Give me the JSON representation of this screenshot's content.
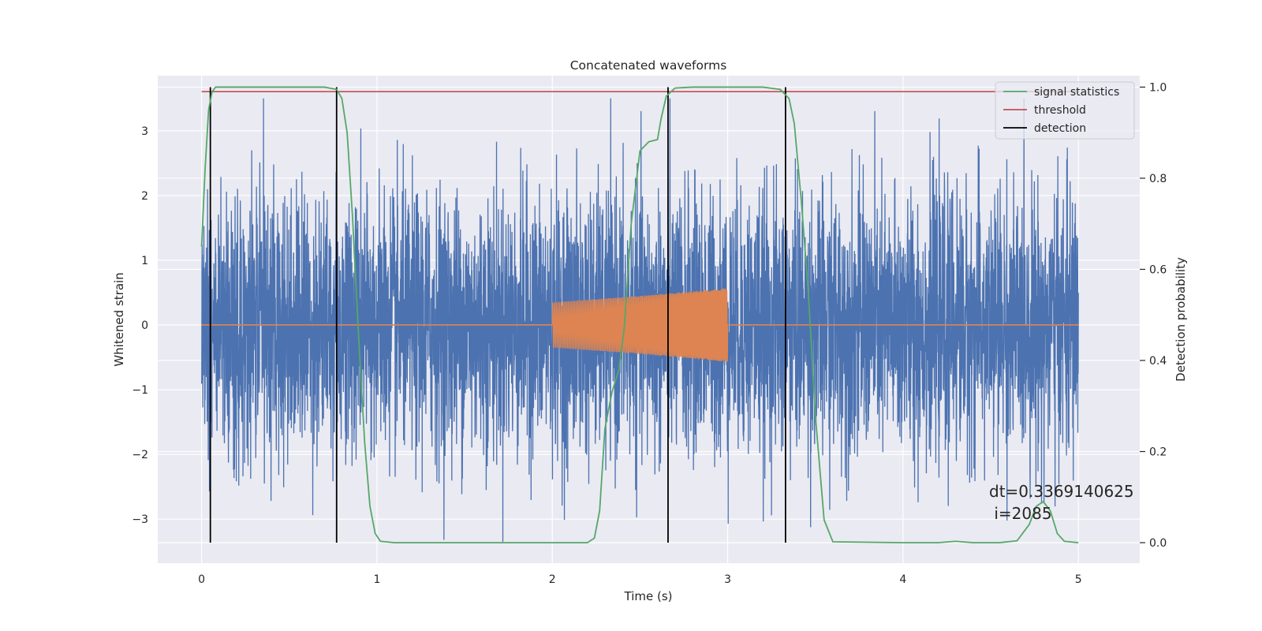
{
  "chart_data": {
    "type": "line",
    "title": "Concatenated waveforms",
    "xlabel": "Time (s)",
    "ylabel_left": "Whitened strain",
    "ylabel_right": "Detection probability",
    "xlim": [
      -0.25,
      5.35
    ],
    "ylim_left": [
      -3.68,
      3.85
    ],
    "ylim_right": [
      -0.045,
      1.025
    ],
    "x_ticks": [
      0,
      1,
      2,
      3,
      4,
      5
    ],
    "x_tick_labels": [
      "0",
      "1",
      "2",
      "3",
      "4",
      "5"
    ],
    "y_left_ticks": [
      -3,
      -2,
      -1,
      0,
      1,
      2,
      3
    ],
    "y_left_tick_labels": [
      "−3",
      "−2",
      "−1",
      "0",
      "1",
      "2",
      "3"
    ],
    "y_right_ticks": [
      0.0,
      0.2,
      0.4,
      0.6,
      0.8,
      1.0
    ],
    "y_right_tick_labels": [
      "0.0",
      "0.2",
      "0.4",
      "0.6",
      "0.8",
      "1.0"
    ],
    "grid": true,
    "legend_position": "top-right",
    "legend": [
      {
        "label": "signal statistics",
        "color": "#55a868"
      },
      {
        "label": "threshold",
        "color": "#c44e52"
      },
      {
        "label": "detection",
        "color": "#000000"
      }
    ],
    "annotation_lines": [
      "dt=0.3369140625",
      " i=2085"
    ],
    "series": [
      {
        "name": "",
        "role": "whitened strain noise",
        "axis": "left",
        "color": "#4c72b0",
        "x_range": [
          0,
          5
        ],
        "y_range_approx": [
          -3.35,
          3.5
        ]
      },
      {
        "name": "",
        "role": "injected waveform",
        "axis": "left",
        "color": "#dd8452",
        "x": [
          0,
          2.0,
          2.0,
          2.5,
          3.0,
          3.0,
          5.0
        ],
        "amplitude": [
          0,
          0,
          0.35,
          0.45,
          0.57,
          0,
          0
        ]
      },
      {
        "name": "signal statistics",
        "axis": "right",
        "color": "#55a868",
        "x": [
          0.0,
          0.02,
          0.04,
          0.06,
          0.08,
          0.12,
          0.2,
          0.4,
          0.6,
          0.7,
          0.77,
          0.8,
          0.83,
          0.86,
          0.9,
          0.93,
          0.96,
          0.99,
          1.02,
          1.1,
          1.5,
          2.0,
          2.2,
          2.24,
          2.27,
          2.3,
          2.34,
          2.38,
          2.41,
          2.45,
          2.5,
          2.55,
          2.6,
          2.62,
          2.65,
          2.7,
          2.8,
          3.0,
          3.2,
          3.3,
          3.35,
          3.38,
          3.42,
          3.46,
          3.5,
          3.55,
          3.6,
          4.0,
          4.2,
          4.3,
          4.4,
          4.55,
          4.65,
          4.72,
          4.76,
          4.8,
          4.84,
          4.88,
          4.92,
          5.0
        ],
        "y": [
          0.65,
          0.82,
          0.95,
          0.99,
          1.0,
          1.0,
          1.0,
          1.0,
          1.0,
          1.0,
          0.995,
          0.975,
          0.9,
          0.72,
          0.42,
          0.22,
          0.08,
          0.02,
          0.003,
          0.0,
          0.0,
          0.0,
          0.0,
          0.01,
          0.07,
          0.25,
          0.33,
          0.38,
          0.47,
          0.7,
          0.86,
          0.88,
          0.885,
          0.93,
          0.98,
          0.998,
          1.0,
          1.0,
          1.0,
          0.995,
          0.975,
          0.92,
          0.75,
          0.55,
          0.28,
          0.05,
          0.002,
          0.0,
          0.0,
          0.003,
          0.0,
          0.0,
          0.004,
          0.04,
          0.08,
          0.09,
          0.07,
          0.02,
          0.003,
          0.0
        ]
      },
      {
        "name": "threshold",
        "axis": "right",
        "color": "#c44e52",
        "x": [
          0,
          5
        ],
        "y": [
          0.99,
          0.99
        ]
      },
      {
        "name": "detection",
        "axis": "right",
        "color": "#000000",
        "type": "vlines",
        "x": [
          0.05,
          0.77,
          2.66,
          3.33
        ],
        "y_range": [
          0,
          1
        ]
      }
    ]
  }
}
